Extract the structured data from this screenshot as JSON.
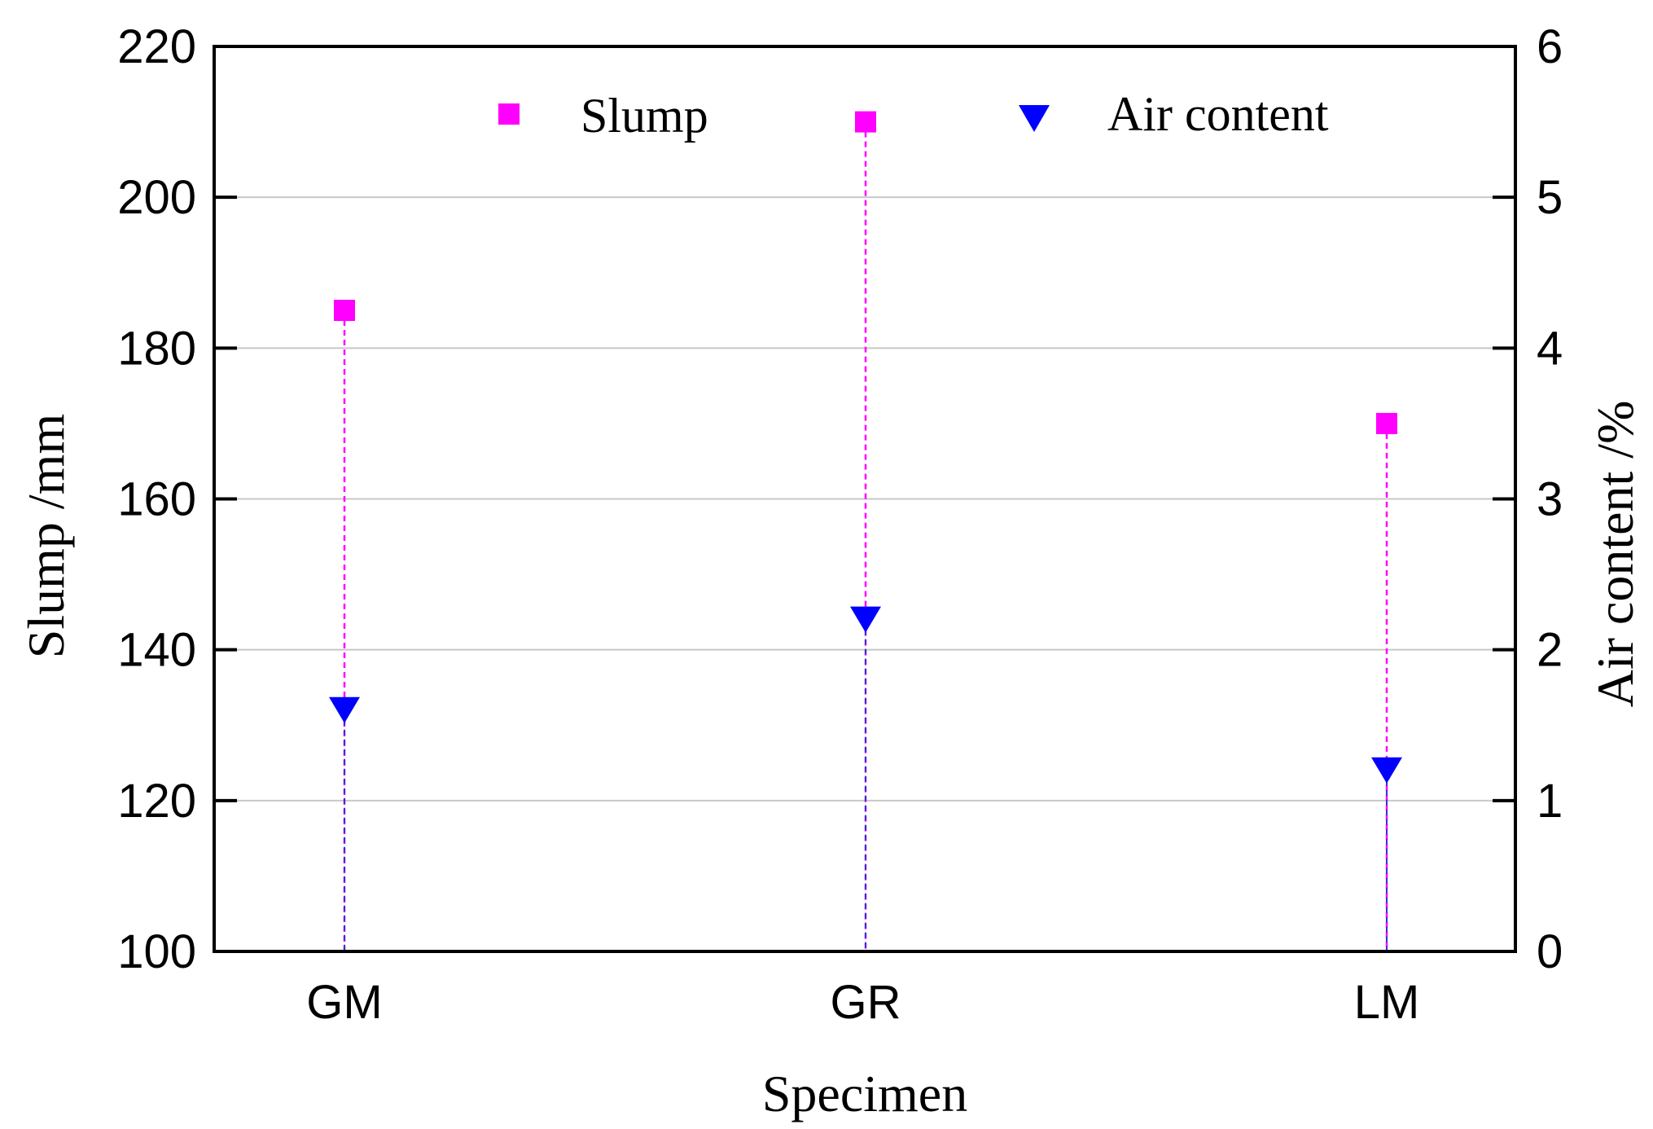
{
  "chart_data": {
    "type": "scatter",
    "categories": [
      "GM",
      "GR",
      "LM"
    ],
    "xlabel": "Specimen",
    "ylabel": "Slump /mm",
    "y2label": "Air content /%",
    "ylim": [
      100,
      220
    ],
    "yticks": [
      100,
      120,
      140,
      160,
      180,
      200,
      220
    ],
    "y2lim": [
      0,
      6
    ],
    "y2ticks": [
      0,
      1,
      2,
      3,
      4,
      5,
      6
    ],
    "grid": true,
    "legend_position": "top",
    "series": [
      {
        "name": "Slump",
        "axis": "left",
        "marker": "square",
        "color": "#ff00ff",
        "line_color": "#ff00ff",
        "values": [
          185,
          210,
          170
        ]
      },
      {
        "name": "Air content",
        "axis": "right",
        "marker": "triangle-down",
        "color": "#0000ff",
        "line_color": "#3333cc",
        "values": [
          1.6,
          2.2,
          1.2
        ]
      }
    ]
  }
}
